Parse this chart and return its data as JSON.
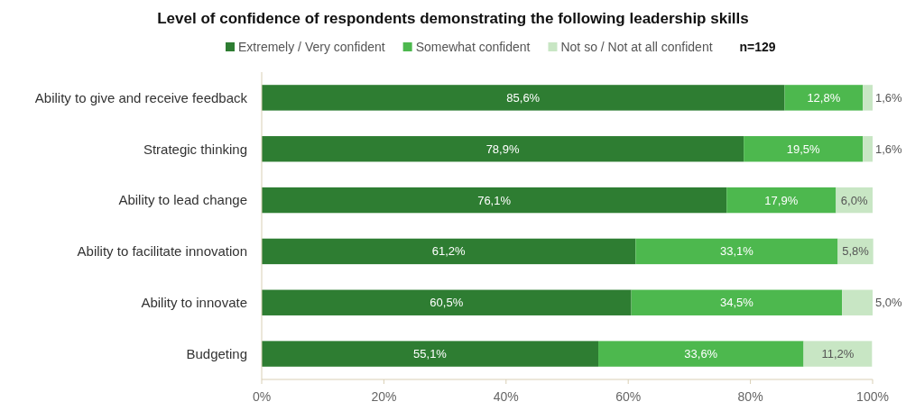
{
  "chart_data": {
    "type": "bar",
    "orientation": "horizontal",
    "stacked": true,
    "title": "Level of confidence of respondents demonstrating the following leadership skills",
    "categories": [
      "Ability to give and receive feedback",
      "Strategic thinking",
      "Ability to lead change",
      "Ability to facilitate innovation",
      "Ability to innovate",
      "Budgeting"
    ],
    "series": [
      {
        "name": "Extremely / Very confident",
        "color": "#2e7d32",
        "values": [
          85.6,
          78.9,
          76.1,
          61.2,
          60.5,
          55.1
        ],
        "value_labels": [
          "85,6%",
          "78,9%",
          "76,1%",
          "61,2%",
          "60,5%",
          "55,1%"
        ]
      },
      {
        "name": "Somewhat confident",
        "color": "#4db84e",
        "values": [
          12.8,
          19.5,
          17.9,
          33.1,
          34.5,
          33.6
        ],
        "value_labels": [
          "12,8%",
          "19,5%",
          "17,9%",
          "33,1%",
          "34,5%",
          "33,6%"
        ]
      },
      {
        "name": "Not so / Not at all confident",
        "color": "#c8e6c4",
        "values": [
          1.6,
          1.6,
          6.0,
          5.8,
          5.0,
          11.2
        ],
        "value_labels": [
          "1,6%",
          "1,6%",
          "6,0%",
          "5,8%",
          "5,0%",
          "11,2%"
        ]
      }
    ],
    "xlim": [
      0,
      100
    ],
    "xticks": [
      {
        "value": 0,
        "label": "0%"
      },
      {
        "value": 20,
        "label": "20%"
      },
      {
        "value": 40,
        "label": "40%"
      },
      {
        "value": 60,
        "label": "60%"
      },
      {
        "value": 80,
        "label": "80%"
      },
      {
        "value": 100,
        "label": "100%"
      }
    ],
    "legend": "top",
    "grid": false,
    "annotations": [
      "n=129"
    ]
  }
}
